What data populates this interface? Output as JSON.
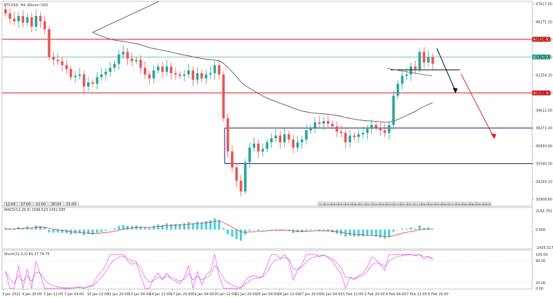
{
  "header": {
    "symbol_label": "BTCUSD, H4: Bitcoin USD"
  },
  "chart_data": {
    "type": "candlestick",
    "title": "BTCUSD, H4: Bitcoin USD",
    "price_axis": {
      "ticks": [
        "47617.00",
        "46275.20",
        "44945.40",
        "43615.60",
        "42254.20",
        "40912.30",
        "39612.00",
        "38271.20",
        "36930.40",
        "35590.30",
        "34249.10",
        "32908.60"
      ],
      "ylim": [
        32400,
        47800
      ]
    },
    "time_axis": {
      "ticks": [
        "3 Jan 2022",
        "4 Jan 20:00",
        "5 Jan 12:00",
        "7 Jan 04:00",
        "10 Jan 12:00",
        "11 Jan 20:00",
        "13 Jan 04:00",
        "14 Jan 12:00",
        "17 Jan 20:00",
        "19 Jan 04:00",
        "20 Jan 12:00",
        "21 Jan 20:00",
        "25 Jan 04:00",
        "26 Jan 12:00",
        "27 Jan 20:00",
        "31 Jan 04:00",
        "1 Feb 12:00",
        "2 Feb 20:00",
        "4 Feb 04:00",
        "7 Feb 12:00",
        "8 Feb 20:00"
      ]
    },
    "time_markers_left": [
      "12:00",
      "17:00",
      "11:00",
      "20:00",
      "21:00"
    ],
    "time_markers_right": [
      "12:00",
      "15:00",
      "08:00",
      "00:00",
      "09:00",
      "08:00",
      "01:00",
      "02:00",
      "16:00",
      "09:00",
      "03:00",
      "12:00",
      "01:00",
      "00:00",
      "12:00",
      "08:00",
      "00:00",
      "09:00",
      "08:00",
      "13:00",
      "09:00",
      "08:00",
      "08:00",
      "09:00",
      "00:00"
    ],
    "closes": [
      46900,
      46500,
      46300,
      46700,
      46200,
      46600,
      45900,
      46700,
      46300,
      45700,
      43600,
      43400,
      43300,
      43000,
      42700,
      42100,
      42200,
      42300,
      41400,
      41700,
      41600,
      42100,
      42300,
      42500,
      42800,
      43100,
      43800,
      44000,
      43500,
      43300,
      43400,
      42800,
      42300,
      42000,
      42600,
      42900,
      42500,
      42900,
      42400,
      42300,
      42200,
      42300,
      42600,
      41900,
      42400,
      42000,
      42300,
      42400,
      43000,
      42300,
      39000,
      36500,
      35300,
      34300,
      33500,
      35700,
      36800,
      37100,
      36500,
      36700,
      37200,
      37500,
      37700,
      37200,
      37800,
      37400,
      36800,
      37200,
      37400,
      38100,
      38300,
      38700,
      38600,
      38800,
      38600,
      38400,
      38000,
      37900,
      37200,
      37700,
      37600,
      37800,
      37900,
      38200,
      38500,
      38300,
      38100,
      37900,
      38500,
      40700,
      41600,
      42200,
      42300,
      42900,
      42700,
      44000,
      43200,
      43600,
      43100
    ],
    "indicators": {
      "macd": {
        "label": "MACD(12,26,9) 1596.523 1452.585",
        "ticks": [
          "2152.751",
          "0.000",
          "-2435.517"
        ]
      },
      "stoch": {
        "label": "Stoch(21,3,3) 81.27 79.75",
        "ticks": [
          "100.00",
          "80.00",
          "20.00",
          "0.00"
        ]
      }
    },
    "levels": [
      {
        "name": "resistance",
        "price": 44945.4,
        "label": "44945.40",
        "color": "#e01010"
      },
      {
        "name": "current",
        "price": 43620.5,
        "label": "43620.50",
        "color": "#20a080"
      },
      {
        "name": "support",
        "price": 40912.3,
        "label": "40912.30",
        "color": "#e01010"
      }
    ],
    "colors": {
      "bull": "#26a69a",
      "bear": "#ef5350",
      "ma": "#404040",
      "box": "#101080",
      "signal": "#e02020",
      "stoch_k": "#ff40ff",
      "stoch_d": "#a020c0",
      "macd_hist": "#40d0e0"
    }
  }
}
